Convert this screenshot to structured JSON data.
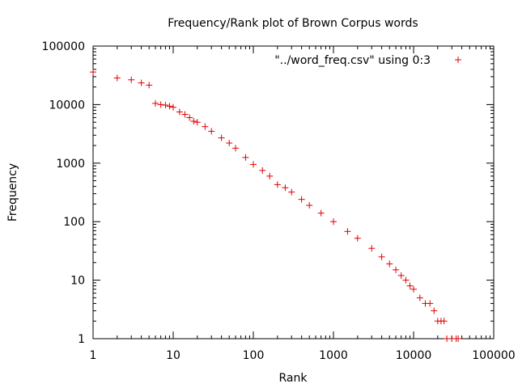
{
  "chart_data": {
    "type": "scatter",
    "title": "Frequency/Rank plot of Brown Corpus words",
    "xlabel": "Rank",
    "ylabel": "Frequency",
    "xscale": "log",
    "yscale": "log",
    "xlim": [
      1,
      100000
    ],
    "ylim": [
      1,
      100000
    ],
    "x_ticks": [
      1,
      10,
      100,
      1000,
      10000,
      100000
    ],
    "x_tick_labels": [
      "1",
      "10",
      "100",
      "1000",
      "10000",
      "100000"
    ],
    "y_ticks": [
      1,
      10,
      100,
      1000,
      10000,
      100000
    ],
    "y_tick_labels": [
      "1",
      "10",
      "100",
      "1000",
      "10000",
      "100000"
    ],
    "grid": false,
    "legend_position": "top-right",
    "marker": "+",
    "series": [
      {
        "name": "\"../word_freq.csv\" using 0:3",
        "color": "#e00000",
        "points": [
          [
            1,
            36000
          ],
          [
            2,
            28500
          ],
          [
            3,
            26500
          ],
          [
            4,
            23500
          ],
          [
            5,
            21500
          ],
          [
            6,
            10500
          ],
          [
            7,
            10000
          ],
          [
            8,
            9800
          ],
          [
            9,
            9400
          ],
          [
            10,
            9000
          ],
          [
            12,
            7500
          ],
          [
            14,
            6800
          ],
          [
            16,
            6000
          ],
          [
            18,
            5200
          ],
          [
            20,
            5000
          ],
          [
            25,
            4200
          ],
          [
            30,
            3500
          ],
          [
            40,
            2700
          ],
          [
            50,
            2200
          ],
          [
            60,
            1800
          ],
          [
            80,
            1250
          ],
          [
            100,
            950
          ],
          [
            130,
            750
          ],
          [
            160,
            600
          ],
          [
            200,
            430
          ],
          [
            250,
            380
          ],
          [
            300,
            320
          ],
          [
            400,
            240
          ],
          [
            500,
            190
          ],
          [
            700,
            140
          ],
          [
            1000,
            100
          ],
          [
            1500,
            68
          ],
          [
            2000,
            52
          ],
          [
            3000,
            35
          ],
          [
            4000,
            25
          ],
          [
            5000,
            19
          ],
          [
            6000,
            15
          ],
          [
            7000,
            12
          ],
          [
            8000,
            10
          ],
          [
            9000,
            8
          ],
          [
            10000,
            7
          ],
          [
            12000,
            5
          ],
          [
            14000,
            4
          ],
          [
            16000,
            4
          ],
          [
            18000,
            3
          ],
          [
            20000,
            2
          ],
          [
            22000,
            2
          ],
          [
            24000,
            2
          ],
          [
            26000,
            1
          ],
          [
            30000,
            1
          ],
          [
            34000,
            1
          ],
          [
            36000,
            1
          ]
        ]
      }
    ]
  }
}
